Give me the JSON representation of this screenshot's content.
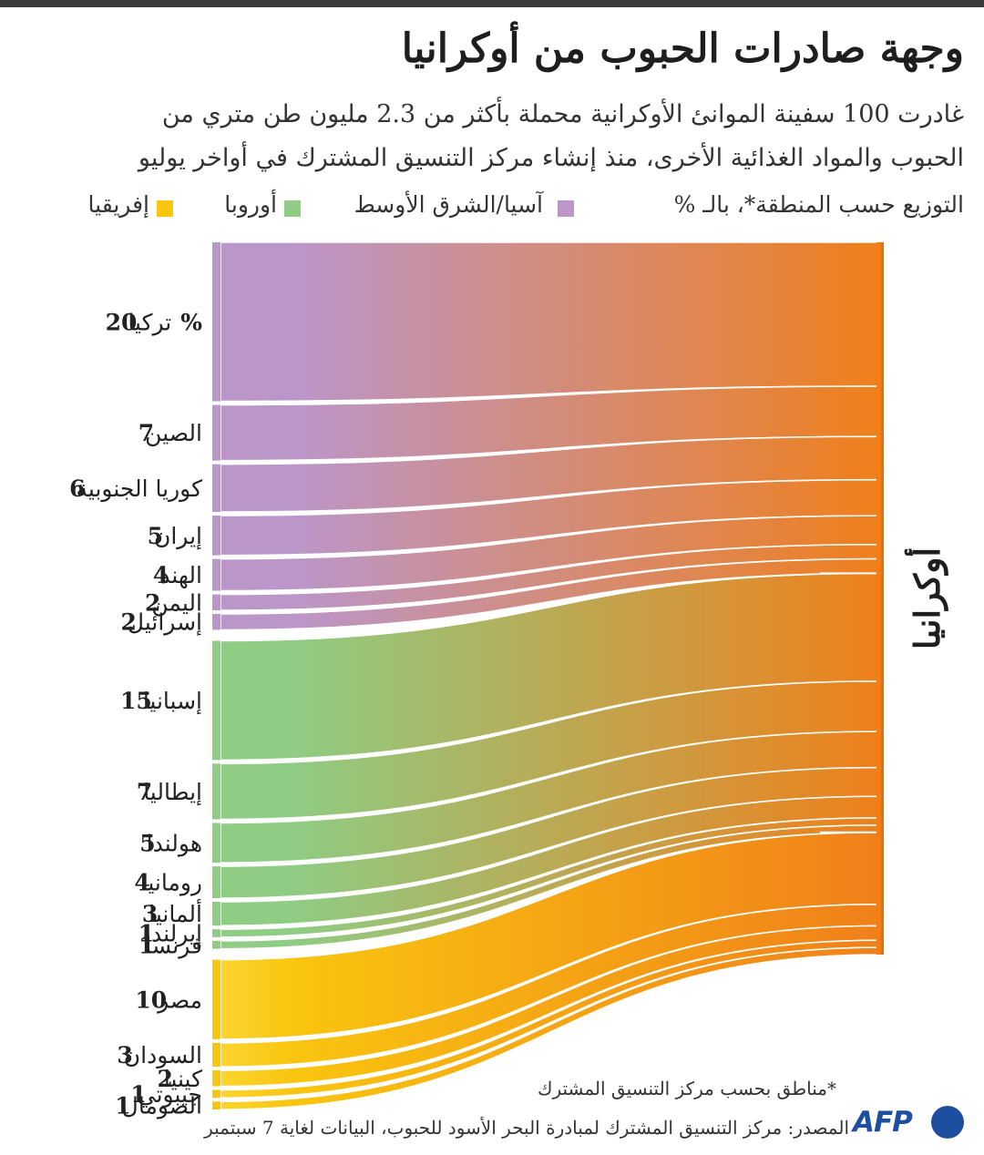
{
  "title": "وجهة صادرات الحبوب من أوكرانيا",
  "subtitle": {
    "line1": "غادرت 100 سفينة الموانئ الأوكرانية محملة بأكثر من 2.3 مليون طن متري من",
    "line2": "الحبوب والمواد الغذائية الأخرى، منذ إنشاء مركز التنسيق المشترك في أواخر يوليو"
  },
  "legend": {
    "heading": "التوزيع حسب المنطقة*، بالـ %",
    "items": [
      {
        "label": "آسيا/الشرق الأوسط",
        "color": "#bb96c9"
      },
      {
        "label": "أوروبا",
        "color": "#8fcc84"
      },
      {
        "label": "إفريقيا",
        "color": "#f9c50f"
      }
    ]
  },
  "footnote": "*مناطق بحسب مركز التنسيق المشترك",
  "source": "المصدر: مركز التنسيق المشترك لمبادرة البحر الأسود للحبوب، البيانات لغاية 7 سبتمبر",
  "logo_text": "AFP",
  "colors": {
    "asia": "#bb96c9",
    "europe": "#8fcc84",
    "africa": "#f9c50f",
    "ukraine": "#f07f1a",
    "ukraine_edge": "#e5700b"
  },
  "chart_data": {
    "type": "sankey",
    "source_node": "أوكرانيا",
    "unit": "%",
    "flows": [
      {
        "region": "asia",
        "country": "تركيا",
        "value": 20,
        "value_label": "20%"
      },
      {
        "region": "asia",
        "country": "الصين",
        "value": 7,
        "value_label": "7"
      },
      {
        "region": "asia",
        "country": "كوريا الجنوبية",
        "value": 6,
        "value_label": "6"
      },
      {
        "region": "asia",
        "country": "إيران",
        "value": 5,
        "value_label": "5"
      },
      {
        "region": "asia",
        "country": "الهند",
        "value": 4,
        "value_label": "4"
      },
      {
        "region": "asia",
        "country": "اليمن",
        "value": 2,
        "value_label": "2"
      },
      {
        "region": "asia",
        "country": "إسرائيل",
        "value": 2,
        "value_label": "2"
      },
      {
        "region": "europe",
        "country": "إسبانيا",
        "value": 15,
        "value_label": "15"
      },
      {
        "region": "europe",
        "country": "إيطاليا",
        "value": 7,
        "value_label": "7"
      },
      {
        "region": "europe",
        "country": "هولندا",
        "value": 5,
        "value_label": "5"
      },
      {
        "region": "europe",
        "country": "رومانيا",
        "value": 4,
        "value_label": "4"
      },
      {
        "region": "europe",
        "country": "ألمانيا",
        "value": 3,
        "value_label": "3"
      },
      {
        "region": "europe",
        "country": "إيرلندا",
        "value": 1,
        "value_label": "1"
      },
      {
        "region": "europe",
        "country": "فرنسا",
        "value": 1,
        "value_label": "1"
      },
      {
        "region": "africa",
        "country": "مصر",
        "value": 10,
        "value_label": "10"
      },
      {
        "region": "africa",
        "country": "السودان",
        "value": 3,
        "value_label": "3"
      },
      {
        "region": "africa",
        "country": "كينيا",
        "value": 2,
        "value_label": "2"
      },
      {
        "region": "africa",
        "country": "جيبوتي",
        "value": 1,
        "value_label": "1"
      },
      {
        "region": "africa",
        "country": "الصومال",
        "value": 1,
        "value_label": "1"
      }
    ]
  }
}
